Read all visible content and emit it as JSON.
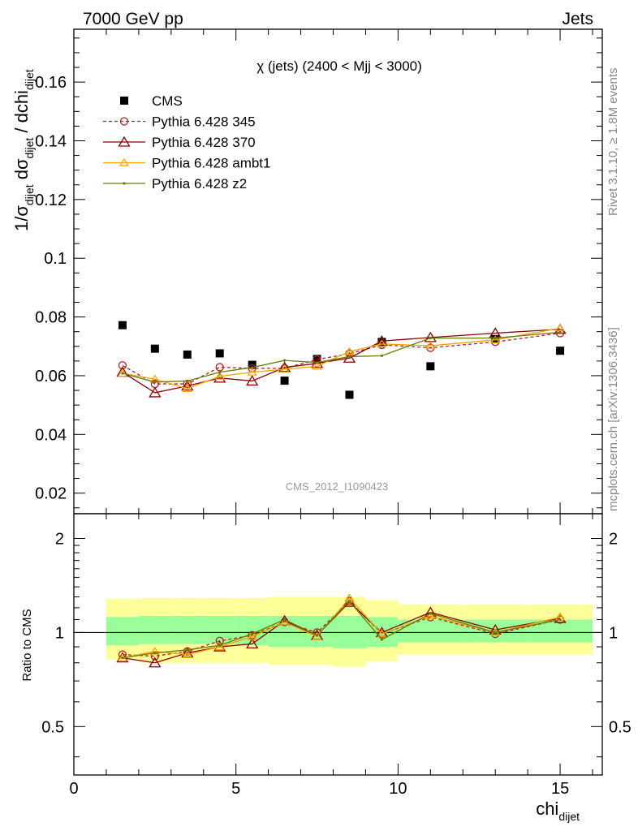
{
  "header": {
    "left": "7000 GeV pp",
    "right": "Jets"
  },
  "side": {
    "rivet": "Rivet 3.1.10, ≥ 1.8M events",
    "mcplots": "mcplots.cern.ch [arXiv:1306.3436]"
  },
  "chart_data": [
    {
      "type": "scatter",
      "title": "χ (jets) (2400 < Mjj < 3000)",
      "watermark": "CMS_2012_I1090423",
      "ylabel_main": "1/σ",
      "ylabel_sub1": "dijet",
      "ylabel_mid": " dσ",
      "ylabel_sub2": "dijet",
      "ylabel_tail": " / dchi",
      "ylabel_sub3": "dijet",
      "xlabel_main": "chi",
      "xlabel_sub": "dijet",
      "xlim": [
        0,
        16.3
      ],
      "ylim": [
        0.013,
        0.178
      ],
      "xticks": [
        0,
        5,
        10,
        15
      ],
      "xtick_labels": [
        "0",
        "5",
        "10",
        "15"
      ],
      "yticks": [
        0.02,
        0.04,
        0.06,
        0.08,
        0.1,
        0.12,
        0.14,
        0.16
      ],
      "ytick_labels": [
        "0.02",
        "0.04",
        "0.06",
        "0.08",
        "0.1",
        "0.12",
        "0.14",
        "0.16"
      ],
      "legend_position": "top-left",
      "x": [
        1.5,
        2.5,
        3.5,
        4.5,
        5.5,
        6.5,
        7.5,
        8.5,
        9.5,
        11,
        13,
        15
      ],
      "x_edges": [
        1,
        2,
        3,
        4,
        5,
        6,
        7,
        8,
        9,
        10,
        12,
        14,
        16
      ],
      "series": [
        {
          "name": "CMS",
          "color": "#000000",
          "marker": "square",
          "values": [
            0.0772,
            0.0692,
            0.0672,
            0.0676,
            0.0637,
            0.0583,
            0.0657,
            0.0535,
            0.0715,
            0.0632,
            0.0725,
            0.0685
          ]
        },
        {
          "name": "Pythia 6.428 345",
          "color": "#b22222",
          "marker": "open-circle",
          "dash": "4,3",
          "values": [
            0.0635,
            0.0572,
            0.0572,
            0.0629,
            0.0625,
            0.0625,
            0.0655,
            0.0675,
            0.0705,
            0.0695,
            0.0715,
            0.0745
          ]
        },
        {
          "name": "Pythia 6.428 370",
          "color": "#8b0000",
          "marker": "open-triangle",
          "values": [
            0.0612,
            0.0542,
            0.0565,
            0.0592,
            0.0582,
            0.0628,
            0.0642,
            0.066,
            0.0718,
            0.073,
            0.0745,
            0.0758
          ]
        },
        {
          "name": "Pythia 6.428 ambt1",
          "color": "#f0a500",
          "marker": "open-triangle-small",
          "values": [
            0.0608,
            0.0588,
            0.0556,
            0.0598,
            0.0612,
            0.0622,
            0.0632,
            0.0682,
            0.0708,
            0.0702,
            0.0722,
            0.0762
          ]
        },
        {
          "name": "Pythia 6.428 z2",
          "color": "#6b7a00",
          "marker": "dot",
          "values": [
            0.0608,
            0.0578,
            0.0582,
            0.0612,
            0.0628,
            0.0652,
            0.0645,
            0.0665,
            0.0668,
            0.0728,
            0.0728,
            0.0748
          ]
        }
      ]
    },
    {
      "type": "line",
      "ylabel": "Ratio to CMS",
      "log_y": true,
      "reference_line": 1,
      "xlim": [
        0,
        16.3
      ],
      "ylim": [
        0.35,
        2.4
      ],
      "yticks": [
        0.5,
        1,
        2
      ],
      "ytick_labels": [
        "0.5",
        "1",
        "2"
      ],
      "x": [
        1.5,
        2.5,
        3.5,
        4.5,
        5.5,
        6.5,
        7.5,
        8.5,
        9.5,
        11,
        13,
        15
      ],
      "x_edges": [
        1,
        2,
        3,
        4,
        5,
        6,
        7,
        8,
        9,
        10,
        12,
        14,
        16
      ],
      "band_inner": {
        "color": "#99ff99",
        "lo": [
          0.91,
          0.92,
          0.92,
          0.92,
          0.91,
          0.9,
          0.9,
          0.89,
          0.9,
          0.93,
          0.93,
          0.93
        ],
        "hi": [
          1.12,
          1.13,
          1.13,
          1.13,
          1.13,
          1.13,
          1.13,
          1.13,
          1.12,
          1.1,
          1.1,
          1.1
        ]
      },
      "band_outer": {
        "color": "#ffff99",
        "lo": [
          0.82,
          0.8,
          0.8,
          0.8,
          0.8,
          0.79,
          0.79,
          0.78,
          0.81,
          0.85,
          0.85,
          0.85
        ],
        "hi": [
          1.28,
          1.29,
          1.29,
          1.29,
          1.29,
          1.3,
          1.3,
          1.3,
          1.27,
          1.23,
          1.23,
          1.23
        ]
      },
      "series": [
        {
          "name": "Pythia 6.428 345",
          "color": "#b22222",
          "marker": "open-circle",
          "dash": "4,3",
          "values": [
            0.85,
            0.84,
            0.87,
            0.94,
            0.98,
            1.08,
            1.0,
            1.26,
            0.99,
            1.12,
            0.99,
            1.1
          ]
        },
        {
          "name": "Pythia 6.428 370",
          "color": "#8b0000",
          "marker": "open-triangle",
          "values": [
            0.83,
            0.8,
            0.86,
            0.9,
            0.92,
            1.09,
            0.98,
            1.25,
            1.0,
            1.16,
            1.02,
            1.11
          ]
        },
        {
          "name": "Pythia 6.428 ambt1",
          "color": "#f0a500",
          "marker": "open-triangle-small",
          "values": [
            0.83,
            0.87,
            0.85,
            0.9,
            0.97,
            1.08,
            0.97,
            1.29,
            0.99,
            1.13,
            1.0,
            1.12
          ]
        },
        {
          "name": "Pythia 6.428 z2",
          "color": "#6b7a00",
          "marker": "dot",
          "values": [
            0.83,
            0.86,
            0.88,
            0.91,
            0.99,
            1.1,
            0.98,
            1.26,
            0.95,
            1.15,
            1.0,
            1.1
          ]
        }
      ]
    }
  ]
}
